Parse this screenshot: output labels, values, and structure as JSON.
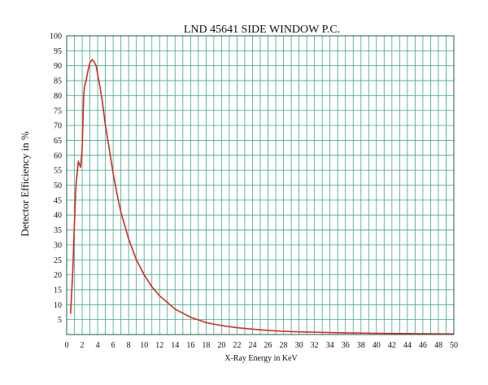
{
  "chart_data": {
    "type": "line",
    "title": "LND 45641 SIDE WINDOW P.C.",
    "xlabel": "X-Ray Energy in KeV",
    "ylabel": "Detector Efficiency in %",
    "xlim": [
      0,
      50
    ],
    "ylim": [
      0,
      100
    ],
    "xticks": [
      0,
      2,
      4,
      6,
      8,
      10,
      12,
      14,
      16,
      18,
      20,
      22,
      24,
      26,
      28,
      30,
      32,
      34,
      36,
      38,
      40,
      42,
      44,
      46,
      48,
      50
    ],
    "yticks": [
      5,
      10,
      15,
      20,
      25,
      30,
      35,
      40,
      45,
      50,
      55,
      60,
      65,
      70,
      75,
      80,
      85,
      90,
      95,
      100
    ],
    "x_minor_step": 1,
    "grid": true,
    "grid_color": "#3aa88a",
    "series_color": "#d42a1e",
    "series": [
      {
        "x": [
          0.5,
          0.8,
          1.0,
          1.2,
          1.5,
          1.8,
          2.0,
          2.2,
          2.3,
          2.5,
          2.8,
          3.0,
          3.3,
          3.5,
          3.8,
          4.0,
          4.3,
          4.6,
          5.0,
          5.5,
          6.0,
          6.5,
          7.0,
          8.0,
          9.0,
          10.0,
          11.0,
          12.0,
          14.0,
          16.0,
          18.0,
          20.0,
          22.0,
          24.0,
          26.0,
          28.0,
          30.0,
          35.0,
          40.0,
          45.0,
          50.0
        ],
        "values": [
          7,
          22,
          37,
          50,
          58,
          56,
          62,
          80,
          83,
          85,
          89,
          91,
          92,
          91.5,
          90,
          87,
          83,
          78,
          70,
          62,
          54,
          47,
          41,
          32,
          25,
          20,
          16,
          13,
          8.5,
          5.8,
          4.0,
          3.0,
          2.3,
          1.8,
          1.4,
          1.1,
          0.9,
          0.6,
          0.4,
          0.3,
          0.2
        ]
      }
    ]
  }
}
